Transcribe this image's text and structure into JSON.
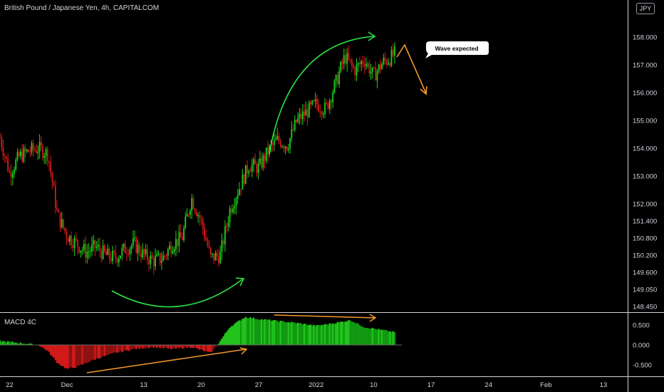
{
  "header": {
    "title": "British Pound / Japanese Yen, 4h, CAPITALCOM",
    "currency_badge": "JPY"
  },
  "indicator": {
    "label": "MACD 4C"
  },
  "annotation": {
    "callout": "Wave expected"
  },
  "colors": {
    "up": "#1cd11c",
    "down": "#d31a1a",
    "arrow_green": "#2ae346",
    "arrow_orange": "#f49a2c",
    "axis_line": "#d1d4dc"
  },
  "chart_data": [
    {
      "type": "candlestick",
      "title": "British Pound / Japanese Yen, 4h, CAPITALCOM",
      "y_axis_side": "right",
      "y_ticks": [
        "158.000",
        "157.000",
        "156.000",
        "155.000",
        "154.000",
        "153.000",
        "152.000",
        "151.400",
        "150.800",
        "150.200",
        "149.600",
        "149.050",
        "148.450"
      ],
      "x_ticks": [
        "22",
        "Dec",
        "13",
        "20",
        "27",
        "2022",
        "10",
        "17",
        "24",
        "Feb",
        "13"
      ],
      "x_tick_positions": [
        0.5,
        3.5,
        7.5,
        10.5,
        13.5,
        16.5,
        19.5,
        22.5,
        25.5,
        28.5,
        31.5
      ],
      "x_range": [
        0,
        32.8
      ],
      "price_path": [
        [
          0,
          154.4
        ],
        [
          0.5,
          153.1
        ],
        [
          1,
          153.7
        ],
        [
          1.5,
          153.9
        ],
        [
          2,
          154.0
        ],
        [
          2.5,
          153.8
        ],
        [
          3,
          151.6
        ],
        [
          3.5,
          150.9
        ],
        [
          4,
          150.6
        ],
        [
          4.5,
          150.3
        ],
        [
          5,
          150.5
        ],
        [
          5.5,
          150.2
        ],
        [
          6,
          150.1
        ],
        [
          6.5,
          150.4
        ],
        [
          7,
          150.6
        ],
        [
          7.5,
          150.2
        ],
        [
          8,
          150.0
        ],
        [
          8.5,
          150.1
        ],
        [
          9,
          150.6
        ],
        [
          9.5,
          150.8
        ],
        [
          10,
          152.2
        ],
        [
          10.5,
          151.4
        ],
        [
          11,
          150.1
        ],
        [
          11.5,
          150.2
        ],
        [
          12,
          151.8
        ],
        [
          12.5,
          152.6
        ],
        [
          13,
          153.4
        ],
        [
          13.5,
          153.3
        ],
        [
          14,
          153.9
        ],
        [
          14.5,
          154.3
        ],
        [
          15,
          154.1
        ],
        [
          15.5,
          155.0
        ],
        [
          16,
          155.3
        ],
        [
          16.5,
          155.6
        ],
        [
          17,
          155.4
        ],
        [
          17.5,
          156.3
        ],
        [
          18,
          157.3
        ],
        [
          18.5,
          156.8
        ],
        [
          19,
          157.2
        ],
        [
          19.5,
          156.6
        ],
        [
          20,
          157.1
        ],
        [
          20.3,
          157.2
        ],
        [
          20.6,
          157.4
        ]
      ],
      "annotations": [
        {
          "text": "Wave expected",
          "type": "callout"
        },
        {
          "type": "curved-arrow",
          "color": "green",
          "desc": "rounded bottom"
        },
        {
          "type": "curved-arrow",
          "color": "green",
          "desc": "rally"
        },
        {
          "type": "zigzag-arrow",
          "color": "orange",
          "desc": "expected decline"
        }
      ],
      "grid": false
    },
    {
      "type": "histogram",
      "title": "MACD 4C",
      "y_ticks": [
        "0.500",
        "0.000",
        "-0.500"
      ],
      "y_range": [
        -0.75,
        0.75
      ],
      "histogram_path": [
        [
          0,
          0.1
        ],
        [
          1,
          0.05
        ],
        [
          2,
          0.0
        ],
        [
          2.5,
          -0.15
        ],
        [
          3,
          -0.45
        ],
        [
          3.5,
          -0.6
        ],
        [
          4,
          -0.55
        ],
        [
          5,
          -0.35
        ],
        [
          6,
          -0.2
        ],
        [
          7,
          -0.1
        ],
        [
          8,
          -0.05
        ],
        [
          9,
          -0.1
        ],
        [
          10,
          -0.05
        ],
        [
          11,
          -0.2
        ],
        [
          11.5,
          0.1
        ],
        [
          12,
          0.45
        ],
        [
          12.8,
          0.7
        ],
        [
          13.5,
          0.65
        ],
        [
          14.5,
          0.6
        ],
        [
          15.5,
          0.55
        ],
        [
          16.5,
          0.48
        ],
        [
          17.5,
          0.55
        ],
        [
          18.3,
          0.62
        ],
        [
          19,
          0.45
        ],
        [
          20.6,
          0.32
        ]
      ]
    }
  ]
}
